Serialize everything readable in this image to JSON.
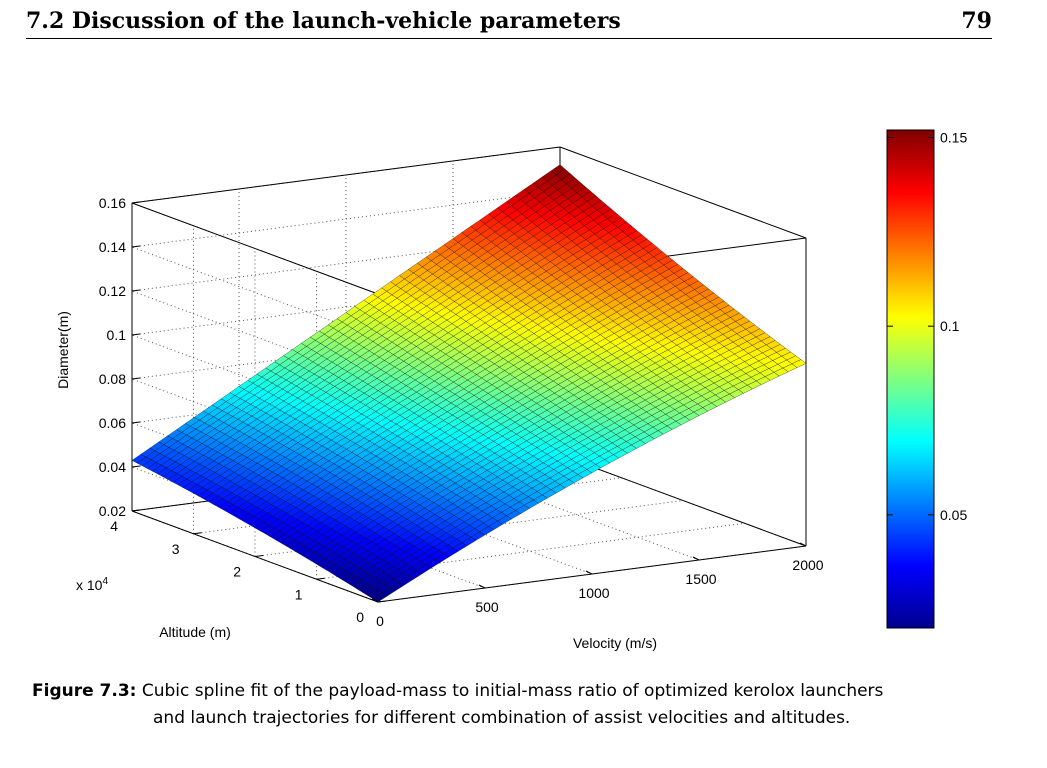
{
  "header": {
    "section": "7.2 Discussion of the launch-vehicle parameters",
    "page_number": "79"
  },
  "caption": {
    "label": "Figure 7.3:",
    "line1": "Cubic spline fit of the payload-mass to initial-mass ratio of optimized kerolox launchers",
    "line2": "and launch trajectories for different combination of assist velocities and altitudes."
  },
  "chart_data": {
    "type": "surface",
    "title": "",
    "xlabel": "Velocity (m/s)",
    "ylabel": "Altitude (m)",
    "zlabel": "Diameter(m)",
    "y_multiplier_label": "x 10",
    "y_multiplier_exponent": "4",
    "xlim": [
      0,
      2000
    ],
    "ylim": [
      0,
      40000
    ],
    "zlim": [
      0.02,
      0.16
    ],
    "x_ticks": [
      "0",
      "500",
      "1000",
      "1500",
      "2000"
    ],
    "y_ticks": [
      "0",
      "1",
      "2",
      "3",
      "4"
    ],
    "z_ticks": [
      "0.02",
      "0.04",
      "0.06",
      "0.08",
      "0.1",
      "0.12",
      "0.14",
      "0.16"
    ],
    "colorbar": {
      "min": 0.02,
      "max": 0.152,
      "ticks": [
        "0.05",
        "0.1",
        "0.15"
      ],
      "colormap": "jet"
    },
    "grid": true,
    "mesh_resolution": [
      48,
      48
    ],
    "corners": {
      "v0_h0": 0.02,
      "v2000_h0": 0.103,
      "v0_h40000": 0.043,
      "v2000_h40000": 0.152
    },
    "colors": {
      "edge": "#000000",
      "low": "#00008f",
      "high": "#800000"
    }
  }
}
